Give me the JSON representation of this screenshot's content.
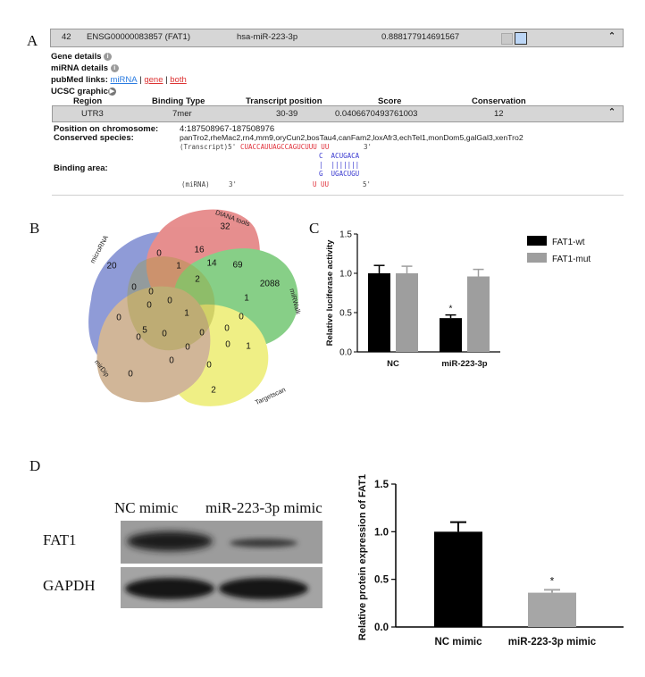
{
  "panel_a": {
    "letter": "A",
    "row": {
      "idx": "42",
      "gene": "ENSG00000083857 (FAT1)",
      "mirna": "hsa-miR-223-3p",
      "score": "0.888177914691567"
    },
    "gene_details": "Gene details",
    "mirna_details": "miRNA details",
    "pubmed_label": "pubMed links:",
    "pubmed_links": [
      "miRNA",
      "gene",
      "both"
    ],
    "ucsc": "UCSC graphic",
    "table_headers": [
      "Region",
      "Binding Type",
      "Transcript position",
      "Score",
      "Conservation"
    ],
    "table_row": [
      "UTR3",
      "7mer",
      "30-39",
      "0.0406670493761003",
      "12"
    ],
    "position_label": "Position on chromosome:",
    "position_value": "4:187508967-187508976",
    "conserved_label": "Conserved species:",
    "conserved_value": "panTro2,rheMac2,rn4,mm9,oryCun2,bosTau4,canFam2,loxAfr3,echTel1,monDom5,galGal3,xenTro2",
    "binding_label": "Binding area:",
    "transcript_prefix": "(Transcript)5'",
    "transcript_seq": "CUACCAUUAGCCAGUCUUU UU",
    "transcript_end": "3'",
    "pair_top": "C  ACUGACA",
    "pair_bars": "|  |||||||",
    "pair_bottom": "G  UGACUGU",
    "mirna_prefix": "(miRNA)",
    "mirna_3": "3'",
    "mirna_seq": "U UU",
    "mirna_end": "5'"
  },
  "panel_b": {
    "letter": "B",
    "sets": [
      "microRNA",
      "DIANA tools",
      "miRWalk",
      "Targetscan",
      "mirDip"
    ],
    "colors": [
      "#4b5fc0",
      "#d84a4a",
      "#3fb33f",
      "#e6e63c",
      "#b58a5a"
    ],
    "numbers": [
      "20",
      "32",
      "2088",
      "2",
      "0",
      "16",
      "14",
      "69",
      "0",
      "1",
      "2",
      "0",
      "0",
      "1",
      "0",
      "0",
      "1",
      "0",
      "0",
      "5",
      "0",
      "0",
      "0",
      "0",
      "0",
      "1",
      "0",
      "0",
      "0"
    ]
  },
  "panel_c": {
    "letter": "C",
    "chart_data": {
      "type": "bar",
      "ylabel": "Relative luciferase activity",
      "categories": [
        "NC",
        "miR-223-3p"
      ],
      "series": [
        {
          "name": "FAT1-wt",
          "values": [
            1.0,
            0.43
          ],
          "errors": [
            0.1,
            0.04
          ],
          "color": "#000000"
        },
        {
          "name": "FAT1-mut",
          "values": [
            1.0,
            0.96
          ],
          "errors": [
            0.09,
            0.09
          ],
          "color": "#9e9e9e"
        }
      ],
      "ylim": [
        0.0,
        1.5
      ],
      "yticks": [
        "0.0",
        "0.5",
        "1.0",
        "1.5"
      ],
      "annotations": [
        "*"
      ],
      "legend": "top-right"
    }
  },
  "panel_d": {
    "letter": "D",
    "blot_columns": [
      "NC mimic",
      "miR-223-3p mimic"
    ],
    "blot_rows": [
      "FAT1",
      "GAPDH"
    ],
    "chart_data": {
      "type": "bar",
      "ylabel": "Relative protein expression of FAT1",
      "categories": [
        "NC mimic",
        "miR-223-3p mimic"
      ],
      "values": [
        1.0,
        0.36
      ],
      "errors": [
        0.1,
        0.03
      ],
      "colors": [
        "#000000",
        "#a6a6a6"
      ],
      "ylim": [
        0.0,
        1.5
      ],
      "yticks": [
        "0.0",
        "0.5",
        "1.0",
        "1.5"
      ],
      "annotations": [
        "*"
      ]
    }
  }
}
